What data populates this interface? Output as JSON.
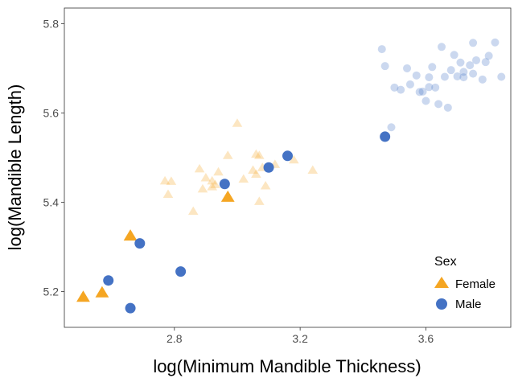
{
  "chart_data": {
    "type": "scatter",
    "title": "",
    "xlabel": "log(Minimum Mandible Thickness)",
    "ylabel": "log(Mandible Length)",
    "xlim": [
      2.45,
      3.87
    ],
    "ylim": [
      5.12,
      5.835
    ],
    "x_ticks": [
      2.8,
      3.2,
      3.6
    ],
    "x_tick_labels": [
      "2.8",
      "3.2",
      "3.6"
    ],
    "y_ticks": [
      5.2,
      5.4,
      5.6,
      5.8
    ],
    "y_tick_labels": [
      "5.2",
      "5.4",
      "5.6",
      "5.8"
    ],
    "grid": false,
    "legend_position": "right",
    "legend": {
      "title": "Sex",
      "entries": [
        {
          "label": "Female",
          "shape": "triangle",
          "color": "#F5A623"
        },
        {
          "label": "Male",
          "shape": "circle",
          "color": "#4472C4"
        }
      ]
    },
    "series": [
      {
        "name": "Female",
        "shape": "triangle",
        "color": "#F5A623",
        "faded_points": [
          [
            2.77,
            5.448
          ],
          [
            2.78,
            5.418
          ],
          [
            2.79,
            5.447
          ],
          [
            2.86,
            5.38
          ],
          [
            2.88,
            5.475
          ],
          [
            2.89,
            5.43
          ],
          [
            2.9,
            5.455
          ],
          [
            2.92,
            5.448
          ],
          [
            2.92,
            5.435
          ],
          [
            2.93,
            5.44
          ],
          [
            2.94,
            5.468
          ],
          [
            2.97,
            5.505
          ],
          [
            3.0,
            5.577
          ],
          [
            3.02,
            5.452
          ],
          [
            3.05,
            5.472
          ],
          [
            3.06,
            5.463
          ],
          [
            3.06,
            5.508
          ],
          [
            3.07,
            5.505
          ],
          [
            3.07,
            5.402
          ],
          [
            3.08,
            5.478
          ],
          [
            3.09,
            5.437
          ],
          [
            3.12,
            5.485
          ],
          [
            3.18,
            5.495
          ],
          [
            3.24,
            5.472
          ],
          [
            2.97,
            5.413
          ]
        ],
        "highlighted_points": [
          [
            2.51,
            5.188
          ],
          [
            2.57,
            5.198
          ],
          [
            2.66,
            5.325
          ],
          [
            2.97,
            5.412
          ]
        ]
      },
      {
        "name": "Male",
        "shape": "circle",
        "color": "#4472C4",
        "faded_points": [
          [
            3.46,
            5.743
          ],
          [
            3.47,
            5.705
          ],
          [
            3.49,
            5.568
          ],
          [
            3.5,
            5.657
          ],
          [
            3.52,
            5.652
          ],
          [
            3.54,
            5.7
          ],
          [
            3.55,
            5.664
          ],
          [
            3.57,
            5.684
          ],
          [
            3.59,
            5.648
          ],
          [
            3.6,
            5.627
          ],
          [
            3.61,
            5.658
          ],
          [
            3.61,
            5.68
          ],
          [
            3.62,
            5.703
          ],
          [
            3.63,
            5.657
          ],
          [
            3.64,
            5.62
          ],
          [
            3.65,
            5.748
          ],
          [
            3.66,
            5.681
          ],
          [
            3.67,
            5.612
          ],
          [
            3.68,
            5.696
          ],
          [
            3.69,
            5.73
          ],
          [
            3.7,
            5.682
          ],
          [
            3.71,
            5.713
          ],
          [
            3.72,
            5.68
          ],
          [
            3.72,
            5.692
          ],
          [
            3.74,
            5.707
          ],
          [
            3.75,
            5.757
          ],
          [
            3.75,
            5.688
          ],
          [
            3.76,
            5.718
          ],
          [
            3.78,
            5.675
          ],
          [
            3.79,
            5.714
          ],
          [
            3.8,
            5.728
          ],
          [
            3.82,
            5.758
          ],
          [
            3.84,
            5.681
          ],
          [
            3.58,
            5.647
          ]
        ],
        "highlighted_points": [
          [
            2.59,
            5.225
          ],
          [
            2.66,
            5.163
          ],
          [
            2.69,
            5.308
          ],
          [
            2.82,
            5.245
          ],
          [
            2.96,
            5.441
          ],
          [
            3.1,
            5.478
          ],
          [
            3.16,
            5.504
          ],
          [
            3.47,
            5.547
          ]
        ]
      }
    ]
  }
}
